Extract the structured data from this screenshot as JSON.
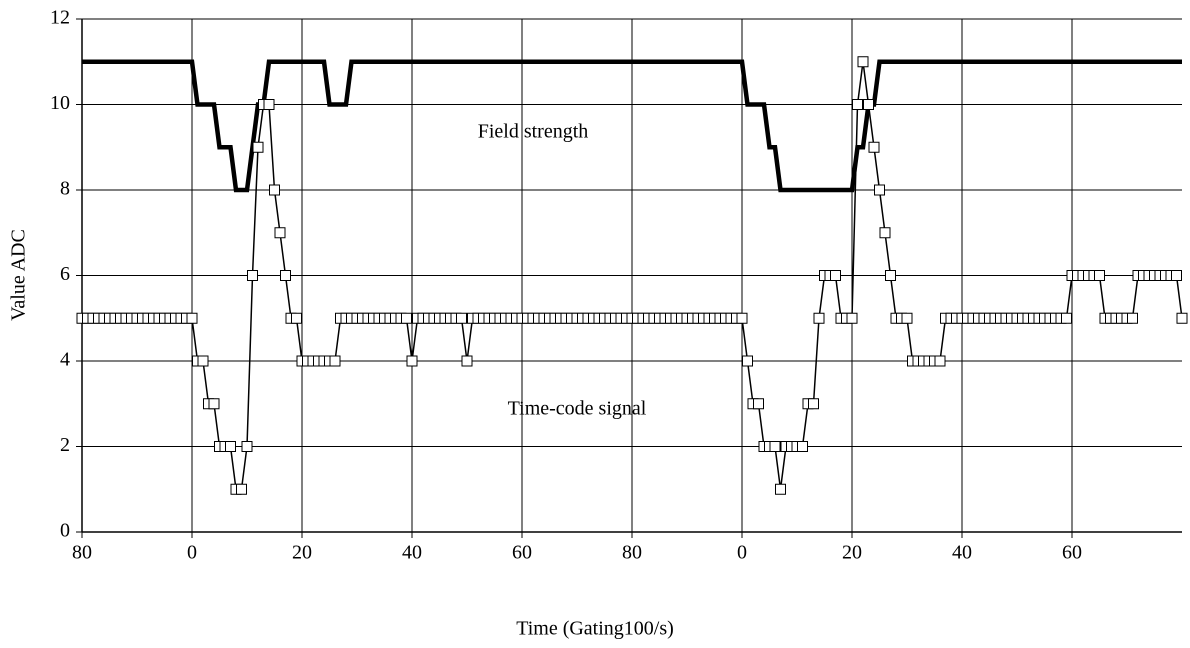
{
  "chart_data": {
    "type": "line",
    "xlabel": "Time (Gating100/s)",
    "ylabel": "Value ADC",
    "xlim": [
      0,
      200
    ],
    "ylim": [
      0,
      12
    ],
    "xticks": [
      {
        "value": 0,
        "label": "80"
      },
      {
        "value": 20,
        "label": "0"
      },
      {
        "value": 40,
        "label": "20"
      },
      {
        "value": 60,
        "label": "40"
      },
      {
        "value": 80,
        "label": "60"
      },
      {
        "value": 100,
        "label": "80"
      },
      {
        "value": 120,
        "label": "0"
      },
      {
        "value": 140,
        "label": "20"
      },
      {
        "value": 160,
        "label": "40"
      },
      {
        "value": 180,
        "label": "60"
      }
    ],
    "yticks": [
      0,
      2,
      4,
      6,
      8,
      10,
      12
    ],
    "grid": true,
    "series": [
      {
        "name": "Field strength",
        "color": "#000000",
        "marker": "none",
        "values": [
          11,
          11,
          11,
          11,
          11,
          11,
          11,
          11,
          11,
          11,
          11,
          11,
          11,
          11,
          11,
          11,
          11,
          11,
          11,
          11,
          11,
          10,
          10,
          10,
          10,
          9,
          9,
          9,
          8,
          8,
          8,
          9,
          10,
          10,
          11,
          11,
          11,
          11,
          11,
          11,
          11,
          11,
          11,
          11,
          11,
          10,
          10,
          10,
          10,
          11,
          11,
          11,
          11,
          11,
          11,
          11,
          11,
          11,
          11,
          11,
          11,
          11,
          11,
          11,
          11,
          11,
          11,
          11,
          11,
          11,
          11,
          11,
          11,
          11,
          11,
          11,
          11,
          11,
          11,
          11,
          11,
          11,
          11,
          11,
          11,
          11,
          11,
          11,
          11,
          11,
          11,
          11,
          11,
          11,
          11,
          11,
          11,
          11,
          11,
          11,
          11,
          11,
          11,
          11,
          11,
          11,
          11,
          11,
          11,
          11,
          11,
          11,
          11,
          11,
          11,
          11,
          11,
          11,
          11,
          11,
          11,
          10,
          10,
          10,
          10,
          9,
          9,
          8,
          8,
          8,
          8,
          8,
          8,
          8,
          8,
          8,
          8,
          8,
          8,
          8,
          8,
          9,
          9,
          10,
          10,
          11,
          11,
          11,
          11,
          11,
          11,
          11,
          11,
          11,
          11,
          11,
          11,
          11,
          11,
          11,
          11,
          11,
          11,
          11,
          11,
          11,
          11,
          11,
          11,
          11,
          11,
          11,
          11,
          11,
          11,
          11,
          11,
          11,
          11,
          11,
          11,
          11,
          11,
          11,
          11,
          11,
          11,
          11,
          11,
          11,
          11,
          11,
          11,
          11,
          11,
          11,
          11,
          11,
          11,
          11,
          11
        ]
      },
      {
        "name": "Time-code signal",
        "color": "#000000",
        "marker": "square",
        "values": [
          5,
          5,
          5,
          5,
          5,
          5,
          5,
          5,
          5,
          5,
          5,
          5,
          5,
          5,
          5,
          5,
          5,
          5,
          5,
          5,
          5,
          4,
          4,
          3,
          3,
          2,
          2,
          2,
          1,
          1,
          2,
          6,
          9,
          10,
          10,
          8,
          7,
          6,
          5,
          5,
          4,
          4,
          4,
          4,
          4,
          4,
          4,
          5,
          5,
          5,
          5,
          5,
          5,
          5,
          5,
          5,
          5,
          5,
          5,
          5,
          4,
          5,
          5,
          5,
          5,
          5,
          5,
          5,
          5,
          5,
          4,
          5,
          5,
          5,
          5,
          5,
          5,
          5,
          5,
          5,
          5,
          5,
          5,
          5,
          5,
          5,
          5,
          5,
          5,
          5,
          5,
          5,
          5,
          5,
          5,
          5,
          5,
          5,
          5,
          5,
          5,
          5,
          5,
          5,
          5,
          5,
          5,
          5,
          5,
          5,
          5,
          5,
          5,
          5,
          5,
          5,
          5,
          5,
          5,
          5,
          5,
          4,
          3,
          3,
          2,
          2,
          2,
          1,
          2,
          2,
          2,
          2,
          3,
          3,
          5,
          6,
          6,
          6,
          5,
          5,
          5,
          10,
          11,
          10,
          9,
          8,
          7,
          6,
          5,
          5,
          5,
          4,
          4,
          4,
          4,
          4,
          4,
          5,
          5,
          5,
          5,
          5,
          5,
          5,
          5,
          5,
          5,
          5,
          5,
          5,
          5,
          5,
          5,
          5,
          5,
          5,
          5,
          5,
          5,
          5,
          6,
          6,
          6,
          6,
          6,
          6,
          5,
          5,
          5,
          5,
          5,
          5,
          6,
          6,
          6,
          6,
          6,
          6,
          6,
          6,
          5
        ]
      }
    ]
  }
}
